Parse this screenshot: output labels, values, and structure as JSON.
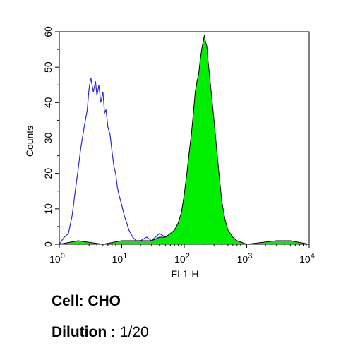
{
  "chart_data": {
    "type": "area",
    "xlabel": "FL1-H",
    "ylabel": "Counts",
    "xscale": "log",
    "xlim": [
      1,
      10000
    ],
    "ylim": [
      0,
      60
    ],
    "x_ticks": [
      {
        "value": 1,
        "base": "10",
        "exp": "0"
      },
      {
        "value": 10,
        "base": "10",
        "exp": "1"
      },
      {
        "value": 100,
        "base": "10",
        "exp": "2"
      },
      {
        "value": 1000,
        "base": "10",
        "exp": "3"
      },
      {
        "value": 10000,
        "base": "10",
        "exp": "4"
      }
    ],
    "y_ticks": [
      0,
      10,
      20,
      30,
      40,
      50,
      60
    ],
    "grid": false,
    "legend": "none",
    "series": [
      {
        "style": "outline",
        "color": "#2a2ad6",
        "x": [
          1.0,
          1.2,
          1.4,
          1.6,
          1.8,
          2.0,
          2.2,
          2.5,
          2.8,
          3.0,
          3.2,
          3.5,
          3.8,
          4.0,
          4.3,
          4.6,
          5.0,
          5.3,
          5.6,
          6.0,
          6.5,
          7.0,
          7.5,
          8.0,
          8.5,
          9.0,
          10,
          11,
          12,
          13,
          15,
          17,
          20,
          25,
          30,
          40,
          50,
          60,
          70,
          100
        ],
        "y": [
          0,
          2,
          3,
          8,
          15,
          21,
          27,
          33,
          38,
          44,
          47,
          43,
          46,
          42,
          45,
          40,
          43,
          37,
          38,
          33,
          31,
          26,
          22,
          20,
          16,
          14,
          11,
          8,
          6,
          4,
          2,
          1,
          1,
          2,
          1,
          3,
          2,
          3,
          2,
          0
        ]
      },
      {
        "style": "filled",
        "color": "#00ee00",
        "x": [
          1,
          2,
          5,
          10,
          20,
          30,
          40,
          50,
          60,
          70,
          80,
          90,
          100,
          110,
          120,
          130,
          140,
          150,
          160,
          170,
          180,
          190,
          200,
          210,
          220,
          230,
          240,
          250,
          270,
          300,
          330,
          360,
          400,
          450,
          500,
          600,
          700,
          1000,
          3000,
          5000,
          10000
        ],
        "y": [
          0,
          1,
          0,
          1,
          1,
          1,
          2,
          2,
          3,
          4,
          6,
          9,
          14,
          20,
          26,
          31,
          37,
          43,
          46,
          48,
          52,
          55,
          57,
          59,
          57,
          56,
          52,
          49,
          43,
          35,
          27,
          20,
          12,
          7,
          4,
          2,
          1,
          0,
          1,
          1,
          0
        ]
      }
    ]
  },
  "captions": {
    "cell_label": "Cell: CHO",
    "dilution_label": "Dilution :",
    "dilution_value": "1/20"
  }
}
